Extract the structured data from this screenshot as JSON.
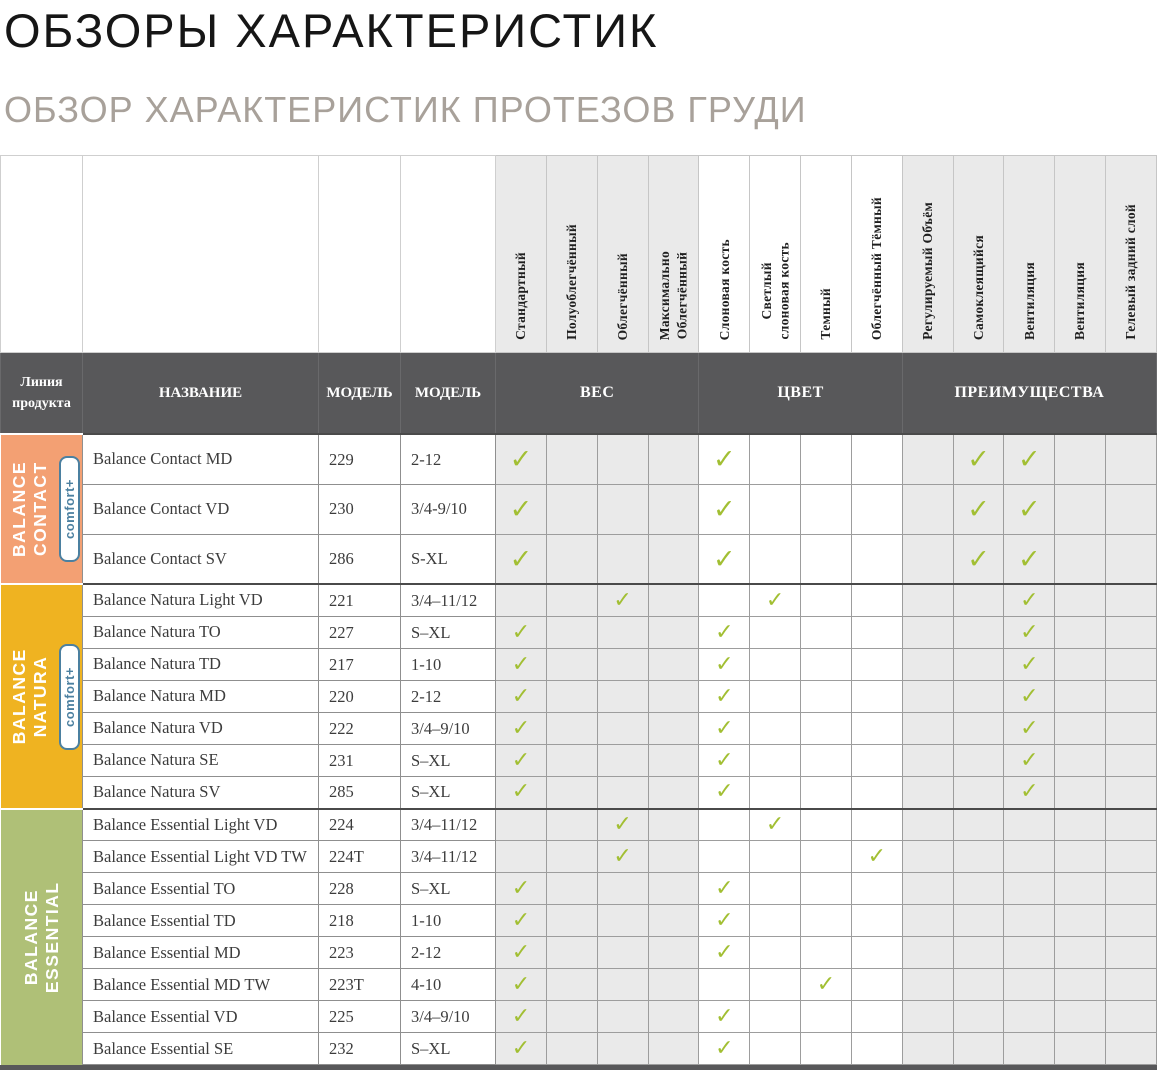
{
  "page": {
    "title": "ОБЗОРЫ ХАРАКТЕРИСТИК",
    "subtitle": "ОБЗОР ХАРАКТЕРИСТИК ПРОТЕЗОВ ГРУДИ"
  },
  "table": {
    "corner_header": "Линия\nпродукта",
    "col_headers": [
      "НАЗВАНИЕ",
      "МОДЕЛЬ",
      "МОДЕЛЬ"
    ],
    "group_headers": [
      {
        "label": "ВЕС",
        "span": 4,
        "shade": "gray"
      },
      {
        "label": "ЦВЕТ",
        "span": 4,
        "shade": "white"
      },
      {
        "label": "ПРЕИМУЩЕСТВА",
        "span": 5,
        "shade": "gray"
      }
    ],
    "feature_columns": [
      {
        "label": "Стандартный"
      },
      {
        "label": "Полуоблегчённый"
      },
      {
        "label": "Облегчённый"
      },
      {
        "label": "Максимально\nОблегчённый"
      },
      {
        "label": "Слоновая кость"
      },
      {
        "label": "Светлый\nслоновая кость"
      },
      {
        "label": "Темный"
      },
      {
        "label": "Облегчённый Тёмный"
      },
      {
        "label": "Регулируемый Объём"
      },
      {
        "label": "Самоклеящийся"
      },
      {
        "label": "Вентиляция"
      },
      {
        "label": "Вентиляция"
      },
      {
        "label": "Гелевый задний слой"
      }
    ],
    "check_mark": "✓",
    "colors": {
      "contact_orange": "#F3A073",
      "natura_yellow": "#EFB321",
      "essential_green": "#AFC077",
      "header_dark": "#58585A",
      "check_green": "#A2BF33",
      "badge_blue": "#4B80A0",
      "shade_gray": "#EAEAEA"
    },
    "product_groups": [
      {
        "name": "BALANCE\nCONTACT",
        "badge": "comfort+",
        "color": "#F3A073",
        "rows": [
          {
            "name": "Balance Contact MD",
            "model": "229",
            "sizes": "2-12",
            "checks": [
              1,
              5,
              10,
              11
            ]
          },
          {
            "name": "Balance Contact VD",
            "model": "230",
            "sizes": "3/4-9/10",
            "checks": [
              1,
              5,
              10,
              11
            ]
          },
          {
            "name": "Balance Contact SV",
            "model": "286",
            "sizes": "S-XL",
            "checks": [
              1,
              5,
              10,
              11
            ]
          }
        ]
      },
      {
        "name": "BALANCE\nNATURA",
        "badge": "comfort+",
        "color": "#EFB321",
        "rows": [
          {
            "name": "Balance Natura Light VD",
            "model": "221",
            "sizes": "3/4–11/12",
            "checks": [
              3,
              6,
              11
            ]
          },
          {
            "name": "Balance Natura TO",
            "model": "227",
            "sizes": "S–XL",
            "checks": [
              1,
              5,
              11
            ]
          },
          {
            "name": "Balance Natura TD",
            "model": "217",
            "sizes": "1-10",
            "checks": [
              1,
              5,
              11
            ]
          },
          {
            "name": "Balance Natura MD",
            "model": "220",
            "sizes": "2-12",
            "checks": [
              1,
              5,
              11
            ]
          },
          {
            "name": "Balance Natura VD",
            "model": "222",
            "sizes": "3/4–9/10",
            "checks": [
              1,
              5,
              11
            ]
          },
          {
            "name": "Balance Natura SE",
            "model": "231",
            "sizes": "S–XL",
            "checks": [
              1,
              5,
              11
            ]
          },
          {
            "name": "Balance Natura SV",
            "model": "285",
            "sizes": "S–XL",
            "checks": [
              1,
              5,
              11
            ]
          }
        ]
      },
      {
        "name": "BALANCE\nESSENTIAL",
        "badge": null,
        "color": "#AFC077",
        "rows": [
          {
            "name": "Balance Essential Light VD",
            "model": "224",
            "sizes": "3/4–11/12",
            "checks": [
              3,
              6
            ]
          },
          {
            "name": "Balance Essential Light VD TW",
            "model": "224T",
            "sizes": "3/4–11/12",
            "checks": [
              3,
              8
            ]
          },
          {
            "name": "Balance Essential TO",
            "model": "228",
            "sizes": "S–XL",
            "checks": [
              1,
              5
            ]
          },
          {
            "name": "Balance Essential TD",
            "model": "218",
            "sizes": "1-10",
            "checks": [
              1,
              5
            ]
          },
          {
            "name": "Balance Essential MD",
            "model": "223",
            "sizes": "2-12",
            "checks": [
              1,
              5
            ]
          },
          {
            "name": "Balance Essential MD TW",
            "model": "223T",
            "sizes": "4-10",
            "checks": [
              1,
              7
            ]
          },
          {
            "name": "Balance Essential VD",
            "model": "225",
            "sizes": "3/4–9/10",
            "checks": [
              1,
              5
            ]
          },
          {
            "name": "Balance Essential SE",
            "model": "232",
            "sizes": "S–XL",
            "checks": [
              1,
              5
            ]
          }
        ]
      }
    ]
  }
}
